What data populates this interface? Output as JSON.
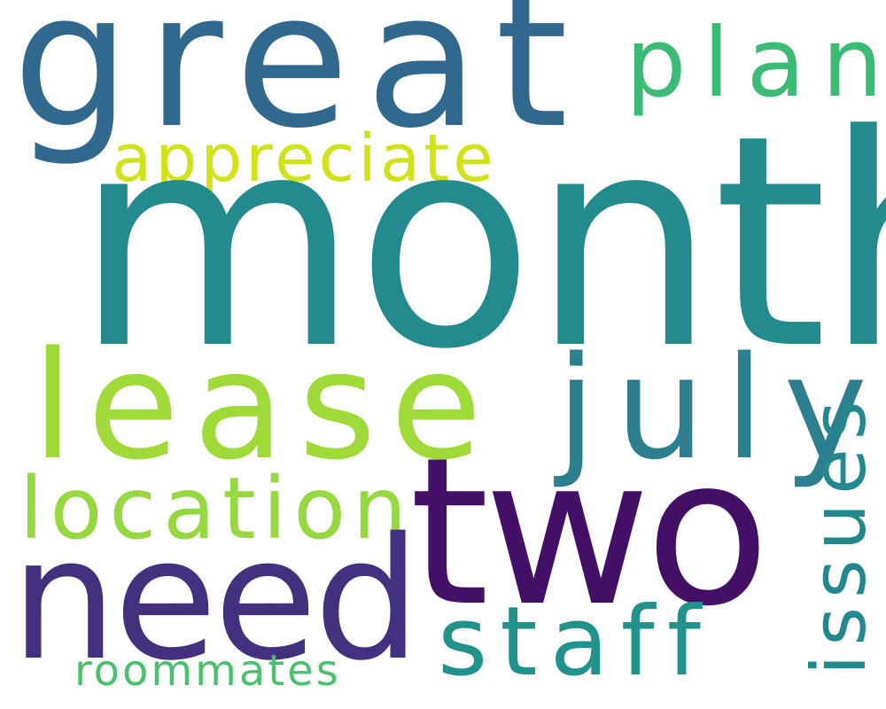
{
  "words": [
    {
      "id": "month",
      "text": "month",
      "color": "#238a8d"
    },
    {
      "id": "great",
      "text": "great",
      "color": "#31688e"
    },
    {
      "id": "plan",
      "text": "plan",
      "color": "#3cbb75"
    },
    {
      "id": "appreciate",
      "text": "appreciate",
      "color": "#d1e21b"
    },
    {
      "id": "lease",
      "text": "lease",
      "color": "#a0da39"
    },
    {
      "id": "july",
      "text": "july",
      "color": "#2c7f8e"
    },
    {
      "id": "location",
      "text": "location",
      "color": "#96d83f"
    },
    {
      "id": "two",
      "text": "two",
      "color": "#440f66"
    },
    {
      "id": "need",
      "text": "need",
      "color": "#433180"
    },
    {
      "id": "staff",
      "text": "staff",
      "color": "#21928c"
    },
    {
      "id": "roommates",
      "text": "roommates",
      "color": "#4ac16d"
    },
    {
      "id": "issues",
      "text": "issues",
      "color": "#23888e"
    }
  ]
}
